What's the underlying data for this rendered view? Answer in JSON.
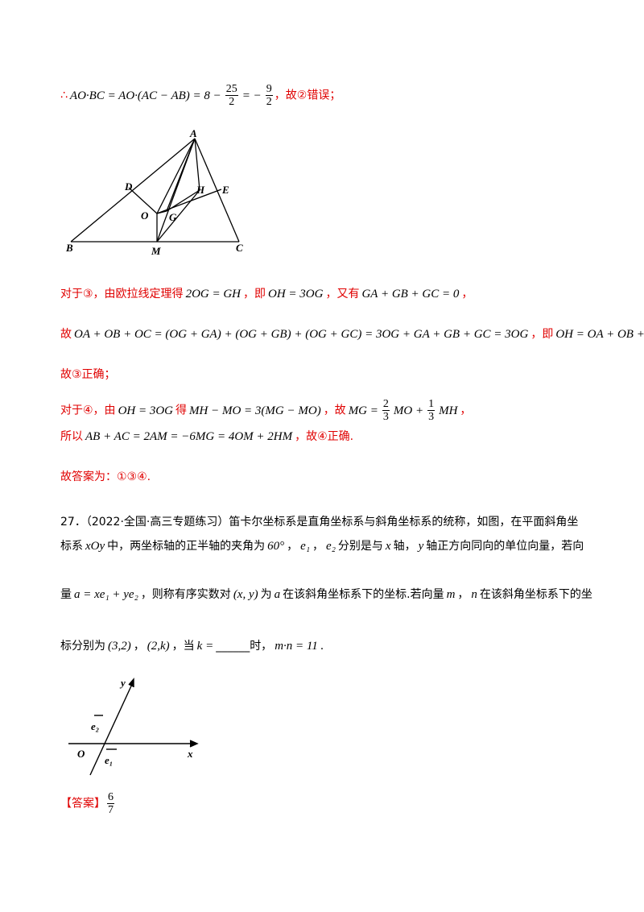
{
  "solution": [
    [
      {
        "cn": "∴"
      },
      {
        "math": "AO·BC = AO·(AC − AB) = 8 −"
      },
      {
        "frac": [
          "25",
          "2"
        ]
      },
      {
        "math": "= −"
      },
      {
        "frac": [
          "9",
          "2"
        ]
      },
      {
        "cn": "，故②错误；"
      }
    ],
    [
      {
        "cn": "对于③，由欧拉线定理得"
      },
      {
        "math": "2OG = GH"
      },
      {
        "cn": "，即"
      },
      {
        "math": "OH = 3OG"
      },
      {
        "cn": "，又有"
      },
      {
        "math": "GA + GB + GC = 0"
      },
      {
        "cn": "，"
      }
    ],
    [
      {
        "cn": "故"
      },
      {
        "math": "OA + OB + OC = (OG + GA) + (OG + GB) + (OG + GC) = 3OG + GA + GB + GC = 3OG"
      },
      {
        "cn": "，即"
      },
      {
        "math": "OH = OA + OB + OC"
      },
      {
        "cn": "，"
      }
    ],
    [
      {
        "cn": "故③正确；"
      }
    ],
    [
      {
        "cn": "对于④，由"
      },
      {
        "math": "OH = 3OG"
      },
      {
        "cn": "得"
      },
      {
        "math": "MH − MO = 3(MG − MO)"
      },
      {
        "cn": "，故"
      },
      {
        "math": "MG ="
      },
      {
        "frac": [
          "2",
          "3"
        ]
      },
      {
        "math": "MO +"
      },
      {
        "frac": [
          "1",
          "3"
        ]
      },
      {
        "math": "MH"
      },
      {
        "cn": "，"
      }
    ],
    [
      {
        "cn": "所以"
      },
      {
        "math": "AB + AC = 2AM = −6MG = 4OM + 2HM"
      },
      {
        "cn": "，故④正确."
      }
    ],
    [
      {
        "cn": "故答案为：①③④."
      }
    ]
  ],
  "figure1": {
    "labels": [
      "A",
      "D",
      "E",
      "H",
      "O",
      "G",
      "B",
      "M",
      "C"
    ]
  },
  "problem": [
    [
      {
        "text": "27．（2022·全国·高三专题练习）笛卡尔坐标系是直角坐标系与斜角坐标系的统称，如图，在平面斜角坐"
      }
    ],
    [
      {
        "text": "标系"
      },
      {
        "math": "xOy"
      },
      {
        "text": "中，两坐标轴的正半轴的夹角为"
      },
      {
        "math": "60°"
      },
      {
        "text": "，"
      },
      {
        "math": "e₁"
      },
      {
        "text": "，"
      },
      {
        "math": "e₂"
      },
      {
        "text": "分别是与"
      },
      {
        "math": "x"
      },
      {
        "text": "轴，"
      },
      {
        "math": "y"
      },
      {
        "text": "轴正方向同向的单位向量，若向"
      }
    ],
    [
      {
        "text": "量"
      },
      {
        "math": "a = xe₁ + ye₂"
      },
      {
        "text": "，则称有序实数对"
      },
      {
        "math": "(x, y)"
      },
      {
        "text": "为"
      },
      {
        "math": "a"
      },
      {
        "text": "在该斜角坐标系下的坐标.若向量"
      },
      {
        "math": "m"
      },
      {
        "text": "，"
      },
      {
        "math": "n"
      },
      {
        "text": "在该斜角坐标系下的坐"
      }
    ],
    [
      {
        "text": "标分别为"
      },
      {
        "math": "(3,2)"
      },
      {
        "text": "，"
      },
      {
        "math": "(2,k)"
      },
      {
        "text": "，当"
      },
      {
        "math": "k ="
      },
      {
        "text": "______时，"
      },
      {
        "math": "m·n = 11"
      },
      {
        "text": "."
      }
    ]
  ],
  "figure2": {
    "labels": [
      "y",
      "e₂",
      "O",
      "e₁",
      "x"
    ]
  },
  "answer": {
    "tag": "【答案】",
    "value": [
      "6",
      "7"
    ]
  }
}
